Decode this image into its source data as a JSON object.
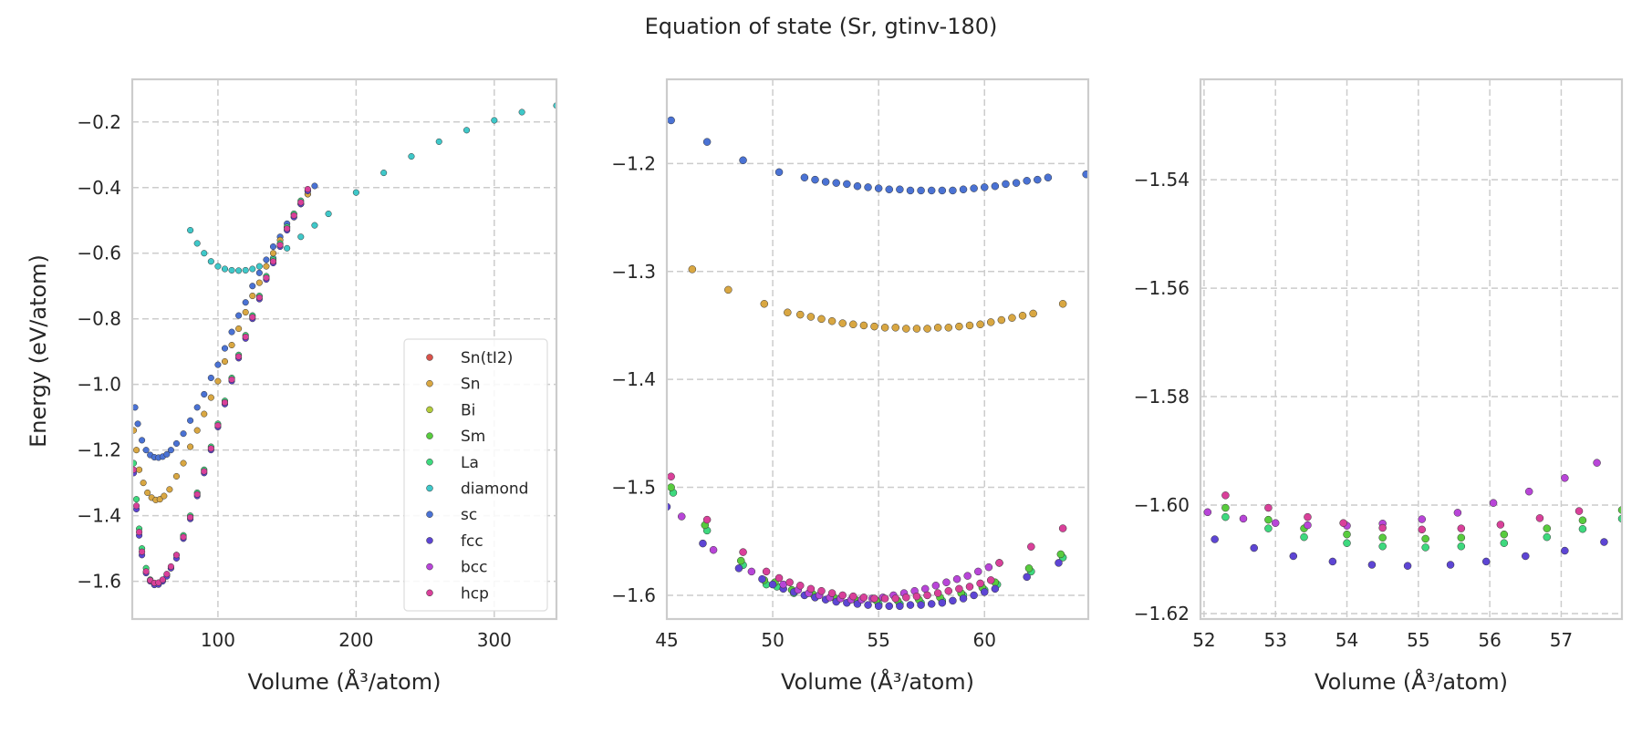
{
  "title": "Equation of state (Sr, gtinv-180)",
  "ylabel": "Energy (eV/atom)",
  "colors": {
    "Sn(tI2)": "#d9524a",
    "Sn": "#d9a742",
    "Bi": "#b3cc3c",
    "Sm": "#58cc3e",
    "La": "#3ed97e",
    "diamond": "#3fc8c9",
    "sc": "#4a72d4",
    "fcc": "#5d45d4",
    "bcc": "#b845d8",
    "hcp": "#d9409a"
  },
  "chart_data": [
    {
      "type": "scatter",
      "xlabel": "Volume (Å³/atom)",
      "ylabel": "Energy (eV/atom)",
      "xlim": [
        38,
        345
      ],
      "ylim": [
        -1.715,
        -0.07
      ],
      "xticks": [
        100,
        200,
        300
      ],
      "yticks": [
        -1.6,
        -1.4,
        -1.2,
        -1.0,
        -0.8,
        -0.6,
        -0.4,
        -0.2
      ],
      "grid": true,
      "legend": {
        "placement": "lower-right",
        "entries": [
          "Sn(tI2)",
          "Sn",
          "Bi",
          "Sm",
          "La",
          "diamond",
          "sc",
          "fcc",
          "bcc",
          "hcp"
        ]
      },
      "series": [
        {
          "name": "diamond",
          "x": [
            80,
            85,
            90,
            95,
            100,
            105,
            110,
            115,
            120,
            125,
            130,
            140,
            150,
            160,
            170,
            180,
            200,
            220,
            240,
            260,
            280,
            300,
            320,
            345
          ],
          "y": [
            -0.53,
            -0.57,
            -0.6,
            -0.625,
            -0.64,
            -0.648,
            -0.652,
            -0.653,
            -0.652,
            -0.648,
            -0.64,
            -0.615,
            -0.585,
            -0.55,
            -0.515,
            -0.48,
            -0.415,
            -0.355,
            -0.305,
            -0.26,
            -0.225,
            -0.195,
            -0.17,
            -0.15
          ]
        },
        {
          "name": "sc",
          "x": [
            40,
            42,
            45,
            48,
            51,
            54,
            57,
            60,
            63,
            66,
            70,
            75,
            80,
            85,
            90,
            95,
            100,
            105,
            110,
            115,
            120,
            125,
            130,
            135,
            140,
            145,
            150,
            155,
            160,
            165,
            170
          ],
          "y": [
            -1.07,
            -1.12,
            -1.17,
            -1.2,
            -1.215,
            -1.222,
            -1.223,
            -1.22,
            -1.213,
            -1.2,
            -1.18,
            -1.15,
            -1.11,
            -1.07,
            -1.03,
            -0.98,
            -0.94,
            -0.89,
            -0.84,
            -0.79,
            -0.75,
            -0.7,
            -0.66,
            -0.62,
            -0.58,
            -0.55,
            -0.51,
            -0.48,
            -0.45,
            -0.42,
            -0.395
          ]
        },
        {
          "name": "Sn",
          "x": [
            39,
            41,
            43,
            46,
            49,
            52,
            55,
            58,
            61,
            65,
            70,
            75,
            80,
            85,
            90,
            95,
            100,
            105,
            110,
            115,
            120,
            125,
            130,
            135,
            140,
            145,
            150,
            155,
            160,
            165
          ],
          "y": [
            -1.14,
            -1.2,
            -1.26,
            -1.3,
            -1.33,
            -1.345,
            -1.352,
            -1.35,
            -1.34,
            -1.32,
            -1.28,
            -1.24,
            -1.19,
            -1.14,
            -1.09,
            -1.04,
            -0.99,
            -0.93,
            -0.88,
            -0.83,
            -0.78,
            -0.73,
            -0.69,
            -0.64,
            -0.6,
            -0.56,
            -0.52,
            -0.49,
            -0.45,
            -0.42
          ]
        },
        {
          "name": "La",
          "x": [
            39,
            41,
            43,
            45,
            48,
            51,
            54,
            57,
            60,
            63,
            66,
            70,
            75,
            80,
            85,
            90,
            95,
            100,
            105,
            110,
            115,
            120,
            125,
            130,
            135,
            140,
            145,
            150,
            155,
            160,
            165
          ],
          "y": [
            -1.24,
            -1.35,
            -1.44,
            -1.5,
            -1.56,
            -1.595,
            -1.608,
            -1.608,
            -1.598,
            -1.58,
            -1.56,
            -1.52,
            -1.46,
            -1.4,
            -1.33,
            -1.26,
            -1.19,
            -1.12,
            -1.05,
            -0.98,
            -0.91,
            -0.85,
            -0.79,
            -0.73,
            -0.67,
            -0.62,
            -0.57,
            -0.52,
            -0.48,
            -0.44,
            -0.41
          ]
        },
        {
          "name": "fcc",
          "x": [
            39,
            41,
            43,
            45,
            48,
            51,
            54,
            57,
            60,
            63,
            66,
            70,
            75,
            80,
            85,
            90,
            95,
            100,
            105,
            110,
            115,
            120,
            125,
            130,
            135,
            140,
            145,
            150,
            155,
            160,
            165
          ],
          "y": [
            -1.27,
            -1.38,
            -1.46,
            -1.52,
            -1.575,
            -1.6,
            -1.611,
            -1.61,
            -1.6,
            -1.585,
            -1.56,
            -1.53,
            -1.47,
            -1.41,
            -1.34,
            -1.27,
            -1.2,
            -1.13,
            -1.06,
            -0.99,
            -0.92,
            -0.86,
            -0.8,
            -0.74,
            -0.68,
            -0.63,
            -0.58,
            -0.53,
            -0.49,
            -0.45,
            -0.41
          ]
        },
        {
          "name": "hcp",
          "x": [
            39,
            41,
            43,
            45,
            48,
            51,
            54,
            57,
            60,
            63,
            66,
            70,
            75,
            80,
            85,
            90,
            95,
            100,
            105,
            110,
            115,
            120,
            125,
            130,
            135,
            140,
            145,
            150,
            155,
            160,
            165
          ],
          "y": [
            -1.26,
            -1.37,
            -1.45,
            -1.51,
            -1.57,
            -1.597,
            -1.605,
            -1.604,
            -1.595,
            -1.578,
            -1.555,
            -1.52,
            -1.465,
            -1.405,
            -1.335,
            -1.265,
            -1.195,
            -1.125,
            -1.055,
            -0.985,
            -0.915,
            -0.855,
            -0.795,
            -0.735,
            -0.675,
            -0.625,
            -0.575,
            -0.525,
            -0.485,
            -0.445,
            -0.405
          ]
        }
      ]
    },
    {
      "type": "scatter",
      "xlabel": "Volume (Å³/atom)",
      "xlim": [
        45,
        64.9
      ],
      "ylim": [
        -1.622,
        -1.122
      ],
      "xticks": [
        45,
        50,
        55,
        60
      ],
      "yticks": [
        -1.6,
        -1.5,
        -1.4,
        -1.3,
        -1.2
      ],
      "grid": true,
      "series": [
        {
          "name": "sc",
          "x": [
            45.2,
            46.9,
            48.6,
            50.3,
            51.5,
            52.0,
            52.5,
            53.0,
            53.5,
            54.0,
            54.5,
            55.0,
            55.5,
            56.0,
            56.5,
            57.0,
            57.5,
            58.0,
            58.5,
            59.0,
            59.5,
            60.0,
            60.5,
            61.0,
            61.5,
            62.0,
            62.5,
            63.0,
            64.8
          ],
          "y": [
            -1.16,
            -1.18,
            -1.197,
            -1.208,
            -1.213,
            -1.215,
            -1.217,
            -1.218,
            -1.219,
            -1.221,
            -1.222,
            -1.223,
            -1.224,
            -1.224,
            -1.225,
            -1.225,
            -1.225,
            -1.225,
            -1.225,
            -1.224,
            -1.223,
            -1.222,
            -1.221,
            -1.219,
            -1.218,
            -1.216,
            -1.215,
            -1.213,
            -1.21
          ]
        },
        {
          "name": "Sn",
          "x": [
            46.2,
            47.9,
            49.6,
            50.7,
            51.3,
            51.8,
            52.3,
            52.8,
            53.3,
            53.8,
            54.3,
            54.8,
            55.3,
            55.8,
            56.3,
            56.8,
            57.3,
            57.8,
            58.3,
            58.8,
            59.3,
            59.8,
            60.3,
            60.8,
            61.3,
            61.8,
            62.3,
            63.7
          ],
          "y": [
            -1.298,
            -1.317,
            -1.33,
            -1.338,
            -1.34,
            -1.342,
            -1.344,
            -1.346,
            -1.348,
            -1.349,
            -1.35,
            -1.351,
            -1.352,
            -1.352,
            -1.353,
            -1.353,
            -1.353,
            -1.352,
            -1.352,
            -1.351,
            -1.35,
            -1.349,
            -1.347,
            -1.345,
            -1.343,
            -1.341,
            -1.339,
            -1.33
          ]
        },
        {
          "name": "La",
          "x": [
            45.3,
            46.9,
            48.6,
            49.7,
            50.2,
            51.0,
            52.0,
            53.0,
            54.0,
            55.0,
            56.0,
            57.0,
            58.0,
            59.0,
            60.0,
            60.6,
            62.2,
            63.7
          ],
          "y": [
            -1.505,
            -1.54,
            -1.572,
            -1.59,
            -1.592,
            -1.598,
            -1.602,
            -1.605,
            -1.607,
            -1.608,
            -1.608,
            -1.607,
            -1.605,
            -1.6,
            -1.595,
            -1.59,
            -1.578,
            -1.565
          ]
        },
        {
          "name": "Sm",
          "x": [
            45.2,
            46.8,
            48.5,
            49.6,
            50.1,
            50.9,
            51.9,
            52.9,
            53.9,
            54.9,
            55.9,
            56.9,
            57.9,
            58.9,
            59.9,
            60.5,
            62.1,
            63.6
          ],
          "y": [
            -1.5,
            -1.535,
            -1.568,
            -1.586,
            -1.588,
            -1.595,
            -1.599,
            -1.602,
            -1.604,
            -1.605,
            -1.605,
            -1.604,
            -1.602,
            -1.598,
            -1.593,
            -1.588,
            -1.575,
            -1.562
          ]
        },
        {
          "name": "fcc",
          "x": [
            45.0,
            46.7,
            48.4,
            49.5,
            50.0,
            50.5,
            51.0,
            51.5,
            52.0,
            52.5,
            53.0,
            53.5,
            54.0,
            54.5,
            55.0,
            55.5,
            56.0,
            56.5,
            57.0,
            57.5,
            58.0,
            58.5,
            59.0,
            59.5,
            60.0,
            60.5,
            62.0,
            63.5
          ],
          "y": [
            -1.518,
            -1.552,
            -1.575,
            -1.585,
            -1.59,
            -1.594,
            -1.597,
            -1.6,
            -1.602,
            -1.604,
            -1.606,
            -1.607,
            -1.608,
            -1.609,
            -1.61,
            -1.61,
            -1.61,
            -1.609,
            -1.609,
            -1.608,
            -1.607,
            -1.605,
            -1.603,
            -1.6,
            -1.597,
            -1.594,
            -1.583,
            -1.57
          ]
        },
        {
          "name": "bcc",
          "x": [
            45.7,
            47.2,
            49.0,
            50.5,
            51.2,
            51.7,
            52.2,
            52.7,
            53.2,
            53.7,
            54.2,
            54.7,
            55.2,
            55.7,
            56.2,
            56.7,
            57.2,
            57.7,
            58.2,
            58.7,
            59.2,
            59.7,
            60.2,
            60.7
          ],
          "y": [
            -1.527,
            -1.558,
            -1.578,
            -1.59,
            -1.595,
            -1.598,
            -1.6,
            -1.602,
            -1.603,
            -1.604,
            -1.604,
            -1.603,
            -1.602,
            -1.6,
            -1.598,
            -1.596,
            -1.594,
            -1.591,
            -1.588,
            -1.585,
            -1.582,
            -1.578,
            -1.574,
            -1.57
          ]
        },
        {
          "name": "hcp",
          "x": [
            45.2,
            46.9,
            48.6,
            49.7,
            50.3,
            50.8,
            51.3,
            51.8,
            52.3,
            52.8,
            53.3,
            53.8,
            54.3,
            54.8,
            55.3,
            55.8,
            56.3,
            56.8,
            57.3,
            57.8,
            58.3,
            58.8,
            59.3,
            59.8,
            60.3,
            60.7,
            62.2,
            63.7
          ],
          "y": [
            -1.49,
            -1.53,
            -1.56,
            -1.578,
            -1.584,
            -1.588,
            -1.591,
            -1.594,
            -1.596,
            -1.598,
            -1.6,
            -1.601,
            -1.602,
            -1.603,
            -1.603,
            -1.603,
            -1.602,
            -1.601,
            -1.6,
            -1.598,
            -1.596,
            -1.594,
            -1.592,
            -1.589,
            -1.586,
            -1.57,
            -1.555,
            -1.538
          ]
        }
      ]
    },
    {
      "type": "scatter",
      "xlabel": "Volume (Å³/atom)",
      "xlim": [
        51.95,
        57.85
      ],
      "ylim": [
        -1.621,
        -1.5215
      ],
      "xticks": [
        52,
        53,
        54,
        55,
        56,
        57
      ],
      "yticks": [
        -1.62,
        -1.6,
        -1.58,
        -1.56,
        -1.54
      ],
      "grid": true,
      "series": [
        {
          "name": "La",
          "x": [
            52.3,
            52.9,
            53.4,
            54.0,
            54.5,
            55.1,
            55.6,
            56.2,
            56.8,
            57.3,
            57.85
          ],
          "y": [
            -1.6022,
            -1.6043,
            -1.6059,
            -1.607,
            -1.6076,
            -1.6078,
            -1.6076,
            -1.607,
            -1.6059,
            -1.6044,
            -1.6025
          ]
        },
        {
          "name": "Sm",
          "x": [
            52.3,
            52.9,
            53.4,
            54.0,
            54.5,
            55.1,
            55.6,
            56.2,
            56.8,
            57.3,
            57.85
          ],
          "y": [
            -1.6005,
            -1.6027,
            -1.6043,
            -1.6054,
            -1.606,
            -1.6062,
            -1.606,
            -1.6054,
            -1.6043,
            -1.6028,
            -1.6009
          ]
        },
        {
          "name": "fcc",
          "x": [
            52.15,
            52.7,
            53.25,
            53.8,
            54.35,
            54.85,
            55.45,
            55.95,
            56.5,
            57.05,
            57.6
          ],
          "y": [
            -1.6063,
            -1.6079,
            -1.6094,
            -1.6104,
            -1.611,
            -1.6112,
            -1.611,
            -1.6104,
            -1.6094,
            -1.6084,
            -1.6068
          ]
        },
        {
          "name": "bcc",
          "x": [
            52.05,
            52.55,
            53.0,
            53.45,
            54.0,
            54.5,
            55.05,
            55.55,
            56.05,
            56.55,
            57.05,
            57.5
          ],
          "y": [
            -1.6013,
            -1.6025,
            -1.6033,
            -1.6037,
            -1.6038,
            -1.6034,
            -1.6026,
            -1.6014,
            -1.5996,
            -1.5975,
            -1.595,
            -1.5922
          ]
        },
        {
          "name": "hcp",
          "x": [
            52.3,
            52.9,
            53.45,
            53.95,
            54.5,
            55.05,
            55.6,
            56.15,
            56.7,
            57.25
          ],
          "y": [
            -1.5982,
            -1.6005,
            -1.6022,
            -1.6033,
            -1.6042,
            -1.6045,
            -1.6043,
            -1.6036,
            -1.6024,
            -1.6011
          ]
        }
      ]
    }
  ]
}
